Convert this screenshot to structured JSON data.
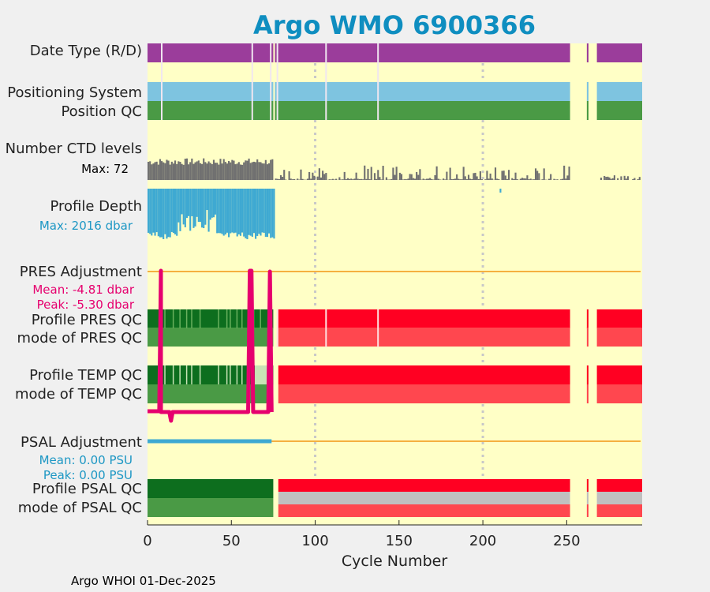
{
  "chart_data": {
    "type": "bar",
    "title": "Argo WMO 6900366",
    "xlabel": "Cycle Number",
    "xlim": [
      0,
      295
    ],
    "xticks": [
      0,
      50,
      100,
      150,
      200,
      250
    ],
    "footer": "Argo WHOI 01-Dec-2025",
    "row_labels": {
      "date_type": "Date Type (R/D)",
      "positioning_system": "Positioning System",
      "position_qc": "Position QC",
      "ctd_levels": "Number CTD levels",
      "ctd_max": "Max: 72",
      "profile_depth": "Profile Depth",
      "depth_max": "Max: 2016 dbar",
      "pres_adjustment": "PRES Adjustment",
      "pres_mean": "Mean: -4.81 dbar",
      "pres_peak": "Peak: -5.30 dbar",
      "profile_pres_qc": "Profile PRES QC",
      "mode_pres_qc": "mode of PRES QC",
      "profile_temp_qc": "Profile TEMP QC",
      "mode_temp_qc": "mode of TEMP QC",
      "psal_adjustment": "PSAL Adjustment",
      "psal_mean": "Mean: 0.00 PSU",
      "psal_peak": "Peak: 0.00 PSU",
      "profile_psal_qc": "Profile PSAL QC",
      "mode_psal_qc": "mode of PSAL QC"
    },
    "gap_cycles": [
      75,
      252,
      253,
      254,
      255,
      256,
      257,
      258,
      259,
      260,
      261,
      263,
      264,
      265,
      266,
      267
    ],
    "dividers": [
      8,
      62,
      73,
      77,
      106,
      137
    ],
    "ctd_levels_max": 72,
    "ctd_levels_sample": [
      {
        "range": [
          0,
          74
        ],
        "mean": 40
      },
      {
        "range": [
          76,
          251
        ],
        "mean": 12
      }
    ],
    "profile_depth_max_dbar": 2016,
    "depth_cycle_range": [
      0,
      75
    ],
    "pres_adjustment_series": {
      "mean": -4.81,
      "peak": -5.3
    },
    "psal_adjustment_series": {
      "mean": 0.0,
      "peak": 0.0,
      "cycle_range": [
        0,
        74
      ]
    },
    "colors": {
      "background": "#ffffc6",
      "date_type": "#9b3d9b",
      "positioning": "#7ec4e0",
      "qc_good": "#4a9a45",
      "qc_good_dark": "#0d6e1e",
      "qc_light": "#c9e3b5",
      "qc_bad": "#ff0022",
      "qc_bad_mode": "#ff474f",
      "qc_grey": "#c0c0c0",
      "ctd_bars": "#707070",
      "depth": "#3ea9d2",
      "pres_line": "#e6006e",
      "psal_line": "#3ea9d2",
      "ref_line": "#f5b040",
      "title": "#0f8ec0",
      "grid": "#c8c8c8"
    }
  }
}
